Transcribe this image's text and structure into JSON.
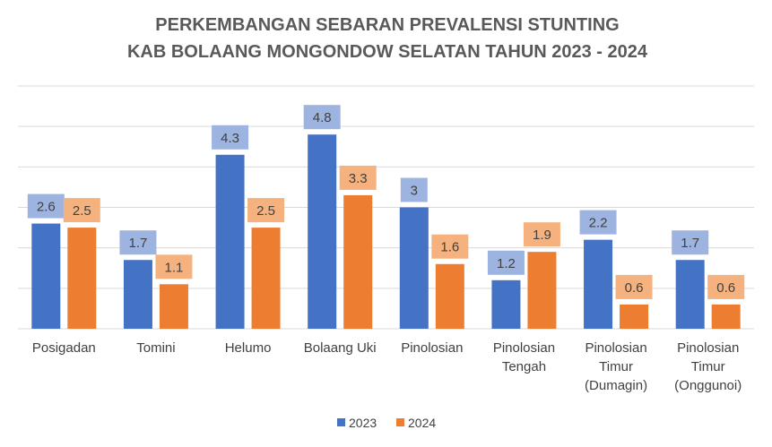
{
  "chart_data": {
    "type": "bar",
    "title_lines": [
      "PERKEMBANGAN SEBARAN PREVALENSI STUNTING",
      "KAB BOLAANG MONGONDOW SELATAN TAHUN 2023 - 2024"
    ],
    "categories": [
      [
        "Posigadan"
      ],
      [
        "Tomini"
      ],
      [
        "Helumo"
      ],
      [
        "Bolaang Uki"
      ],
      [
        "Pinolosian"
      ],
      [
        "Pinolosian",
        "Tengah"
      ],
      [
        "Pinolosian",
        "Timur",
        "(Dumagin)"
      ],
      [
        "Pinolosian",
        "Timur",
        "(Onggunoi)"
      ]
    ],
    "series": [
      {
        "name": "2023",
        "color": "#4472C4",
        "label_bg": "#9DB4E0",
        "values": [
          2.6,
          1.7,
          4.3,
          4.8,
          3,
          1.2,
          2.2,
          1.7
        ]
      },
      {
        "name": "2024",
        "color": "#ED7D31",
        "label_bg": "#F5B27E",
        "values": [
          2.5,
          1.1,
          2.5,
          3.3,
          1.6,
          1.9,
          0.6,
          0.6
        ]
      }
    ],
    "ylim": [
      0,
      6
    ],
    "gridlines": true,
    "legend_position": "bottom"
  }
}
